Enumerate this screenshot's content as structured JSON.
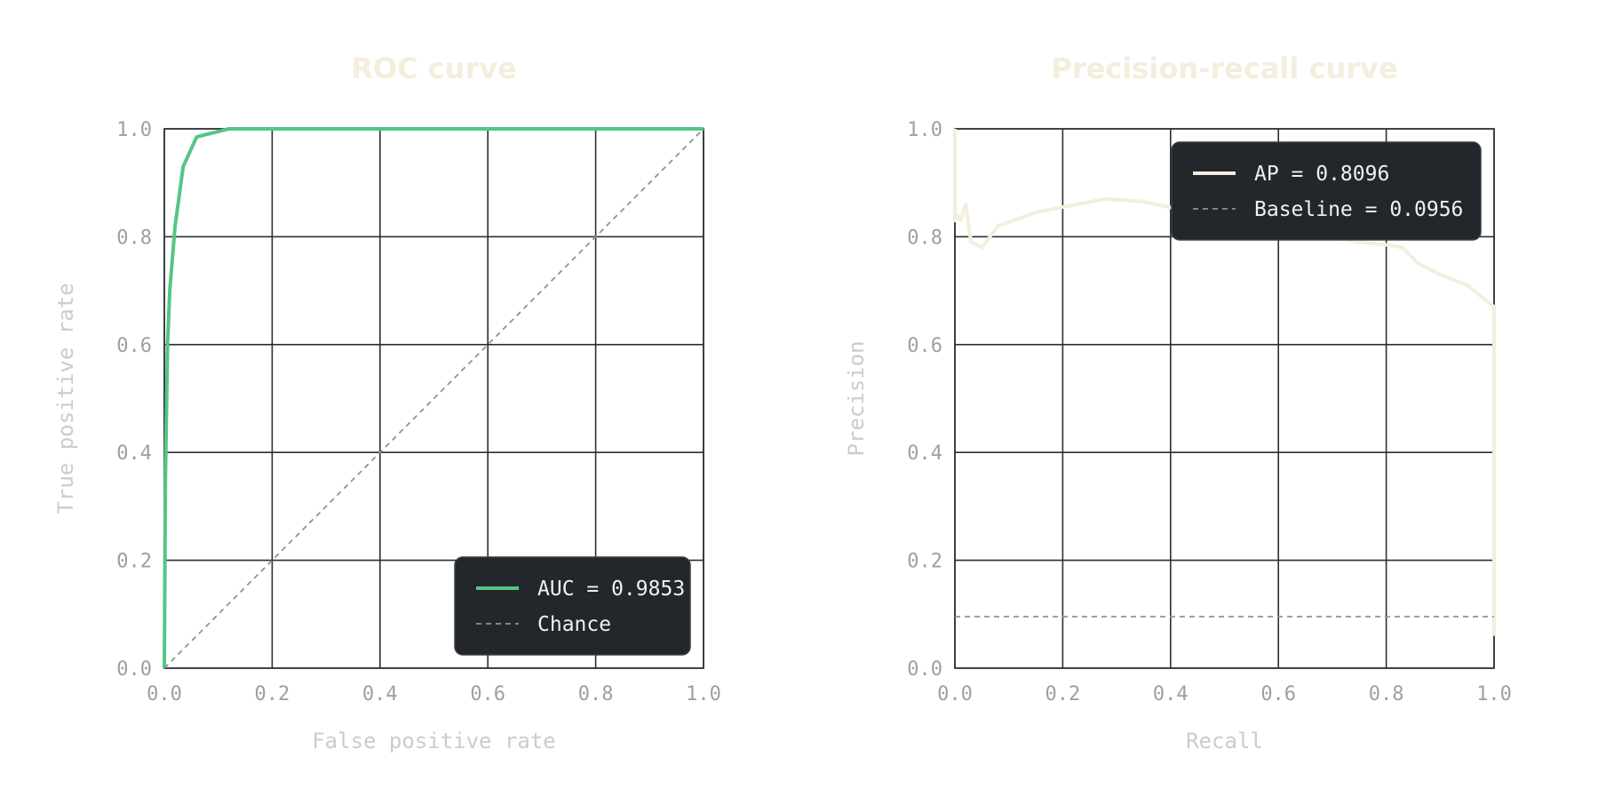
{
  "chart_data": [
    {
      "type": "line",
      "title": "ROC curve",
      "xlabel": "False positive rate",
      "ylabel": "True positive rate",
      "xlim": [
        0,
        1
      ],
      "ylim": [
        0,
        1
      ],
      "xticks": [
        "0.0",
        "0.2",
        "0.4",
        "0.6",
        "0.8",
        "1.0"
      ],
      "yticks": [
        "0.0",
        "0.2",
        "0.4",
        "0.6",
        "0.8",
        "1.0"
      ],
      "grid": true,
      "legend_position": "lower-right",
      "series": [
        {
          "name": "AUC = 0.9853",
          "color": "#55c583",
          "style": "solid",
          "x": [
            0.0,
            0.002,
            0.006,
            0.01,
            0.02,
            0.035,
            0.06,
            0.12,
            0.2,
            0.4,
            0.6,
            0.8,
            1.0
          ],
          "y": [
            0.0,
            0.35,
            0.6,
            0.7,
            0.82,
            0.93,
            0.985,
            1.0,
            1.0,
            1.0,
            1.0,
            1.0,
            1.0
          ]
        },
        {
          "name": "Chance",
          "color": "#8e939a",
          "style": "dashed",
          "x": [
            0.0,
            1.0
          ],
          "y": [
            0.0,
            1.0
          ]
        }
      ]
    },
    {
      "type": "line",
      "title": "Precision-recall curve",
      "xlabel": "Recall",
      "ylabel": "Precision",
      "xlim": [
        0,
        1
      ],
      "ylim": [
        0,
        1
      ],
      "xticks": [
        "0.0",
        "0.2",
        "0.4",
        "0.6",
        "0.8",
        "1.0"
      ],
      "yticks": [
        "0.0",
        "0.2",
        "0.4",
        "0.6",
        "0.8",
        "1.0"
      ],
      "grid": true,
      "legend_position": "top-right",
      "series": [
        {
          "name": "AP = 0.8096",
          "color": "#f3eedd",
          "style": "solid",
          "x": [
            0.0,
            0.0,
            0.005,
            0.01,
            0.02,
            0.03,
            0.05,
            0.08,
            0.15,
            0.2,
            0.28,
            0.35,
            0.42,
            0.5,
            0.58,
            0.66,
            0.75,
            0.8,
            0.83,
            0.86,
            0.9,
            0.95,
            1.0,
            1.0
          ],
          "y": [
            1.0,
            0.83,
            0.84,
            0.83,
            0.86,
            0.79,
            0.78,
            0.82,
            0.845,
            0.855,
            0.87,
            0.865,
            0.85,
            0.835,
            0.82,
            0.805,
            0.79,
            0.785,
            0.78,
            0.75,
            0.73,
            0.71,
            0.67,
            0.06
          ]
        },
        {
          "name": "Baseline = 0.0956",
          "color": "#8e939a",
          "style": "dashed",
          "x": [
            0.0,
            1.0
          ],
          "y": [
            0.0956,
            0.0956
          ]
        }
      ]
    }
  ]
}
